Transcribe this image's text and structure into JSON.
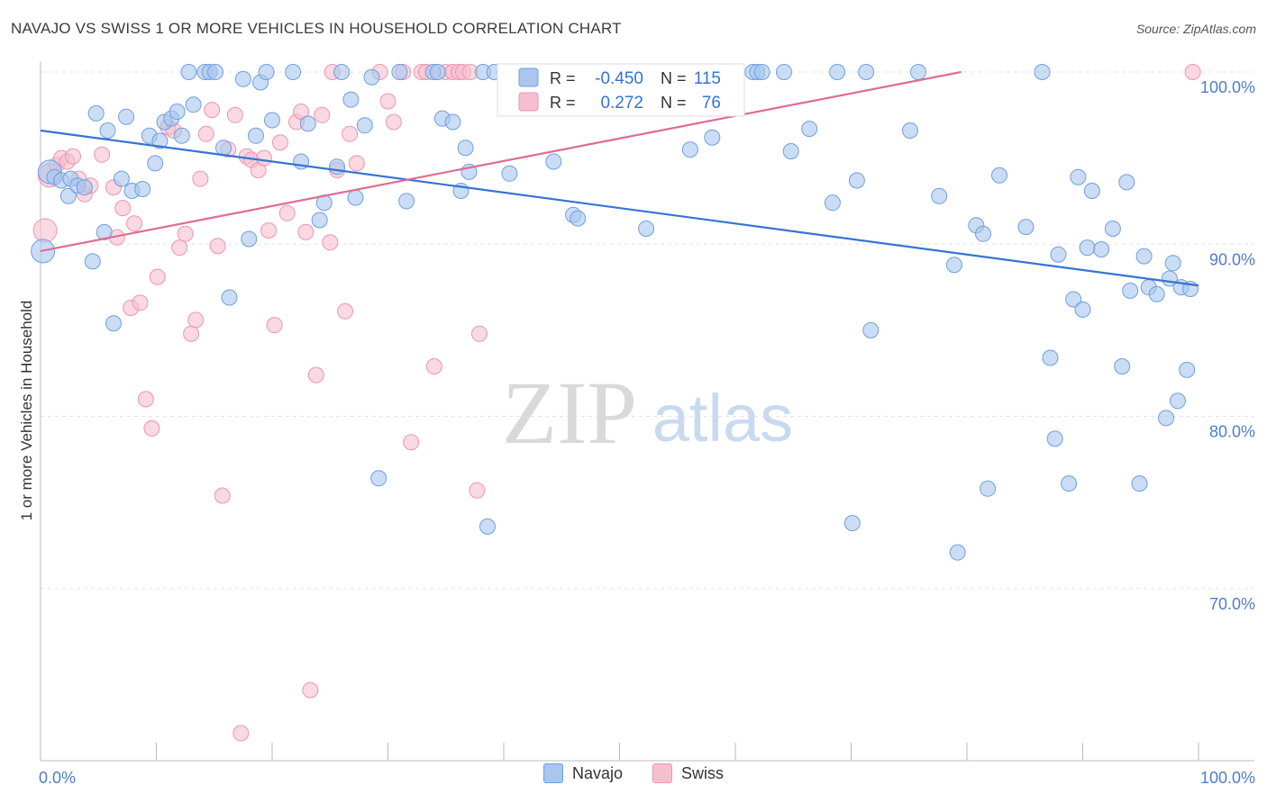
{
  "title": "NAVAJO VS SWISS 1 OR MORE VEHICLES IN HOUSEHOLD CORRELATION CHART",
  "source": "Source: ZipAtlas.com",
  "watermark": {
    "zip": "ZIP",
    "atlas": "atlas"
  },
  "colors": {
    "navajo_fill": "#a9c6ef",
    "navajo_stroke": "#6e9fe0",
    "navajo_line": "#3474d4",
    "swiss_fill": "#f6bfcf",
    "swiss_stroke": "#ec95b0",
    "swiss_line": "#e06b94",
    "tick_label": "#4f7dc9",
    "grid": "#e3e3e3"
  },
  "legend_box": {
    "rows": [
      {
        "r_label": "R =",
        "r_value": "-0.450",
        "n_label": "N =",
        "n_value": "115"
      },
      {
        "r_label": "R =",
        "r_value": "0.272",
        "n_label": "N =",
        "n_value": "76"
      }
    ]
  },
  "chart_data": {
    "type": "scatter",
    "title": "NAVAJO VS SWISS 1 OR MORE VEHICLES IN HOUSEHOLD CORRELATION CHART",
    "xlabel": "",
    "ylabel": "1 or more Vehicles in Household",
    "xlim": [
      0,
      100
    ],
    "ylim": [
      60,
      100
    ],
    "x_tick_labels": [
      "0.0%",
      "100.0%"
    ],
    "y_ticks": [
      70,
      80,
      90,
      100
    ],
    "y_tick_labels": [
      "70.0%",
      "80.0%",
      "90.0%",
      "100.0%"
    ],
    "grid": true,
    "legend_position": "bottom",
    "series": [
      {
        "name": "Navajo",
        "r": -0.45,
        "n": 115,
        "trend": [
          [
            0,
            96.6
          ],
          [
            100,
            87.6
          ]
        ],
        "points": [
          [
            0.2,
            89.6
          ],
          [
            0.8,
            94.2
          ],
          [
            1.2,
            93.9
          ],
          [
            1.8,
            93.7
          ],
          [
            2.4,
            92.8
          ],
          [
            2.6,
            93.8
          ],
          [
            3.2,
            93.4
          ],
          [
            3.8,
            93.3
          ],
          [
            4.5,
            89.0
          ],
          [
            4.8,
            97.6
          ],
          [
            5.5,
            90.7
          ],
          [
            5.8,
            96.6
          ],
          [
            6.3,
            85.4
          ],
          [
            7.0,
            93.8
          ],
          [
            7.4,
            97.4
          ],
          [
            7.9,
            93.1
          ],
          [
            8.8,
            93.2
          ],
          [
            9.4,
            96.3
          ],
          [
            9.9,
            94.7
          ],
          [
            10.3,
            96.0
          ],
          [
            10.7,
            97.1
          ],
          [
            11.3,
            97.3
          ],
          [
            11.8,
            97.7
          ],
          [
            12.2,
            96.3
          ],
          [
            12.8,
            100
          ],
          [
            13.2,
            98.1
          ],
          [
            14.2,
            100
          ],
          [
            14.6,
            100
          ],
          [
            15.1,
            100
          ],
          [
            15.8,
            95.6
          ],
          [
            16.3,
            86.9
          ],
          [
            17.5,
            99.6
          ],
          [
            18.0,
            90.3
          ],
          [
            18.6,
            96.3
          ],
          [
            19.0,
            99.4
          ],
          [
            19.5,
            100
          ],
          [
            20.0,
            97.2
          ],
          [
            21.8,
            100
          ],
          [
            22.5,
            94.8
          ],
          [
            23.1,
            97.0
          ],
          [
            24.1,
            91.4
          ],
          [
            24.5,
            92.4
          ],
          [
            25.6,
            94.5
          ],
          [
            26.0,
            100
          ],
          [
            26.8,
            98.4
          ],
          [
            27.2,
            92.7
          ],
          [
            28.0,
            96.9
          ],
          [
            28.6,
            99.7
          ],
          [
            29.2,
            76.4
          ],
          [
            31.0,
            100
          ],
          [
            31.6,
            92.5
          ],
          [
            33.9,
            100
          ],
          [
            34.3,
            100
          ],
          [
            34.7,
            97.3
          ],
          [
            35.6,
            97.1
          ],
          [
            36.3,
            93.1
          ],
          [
            36.7,
            95.6
          ],
          [
            37.0,
            94.2
          ],
          [
            38.2,
            100
          ],
          [
            38.6,
            73.6
          ],
          [
            39.2,
            100
          ],
          [
            40.1,
            100
          ],
          [
            40.5,
            94.1
          ],
          [
            41.2,
            100
          ],
          [
            42.2,
            100
          ],
          [
            44.3,
            94.8
          ],
          [
            46.0,
            91.7
          ],
          [
            46.4,
            91.5
          ],
          [
            47.5,
            100
          ],
          [
            52.3,
            90.9
          ],
          [
            56.1,
            95.5
          ],
          [
            58.0,
            96.2
          ],
          [
            61.5,
            100
          ],
          [
            61.9,
            100
          ],
          [
            62.3,
            100
          ],
          [
            64.2,
            100
          ],
          [
            64.8,
            95.4
          ],
          [
            66.4,
            96.7
          ],
          [
            68.4,
            92.4
          ],
          [
            68.8,
            100
          ],
          [
            70.1,
            73.8
          ],
          [
            70.5,
            93.7
          ],
          [
            71.3,
            100
          ],
          [
            71.7,
            85.0
          ],
          [
            75.1,
            96.6
          ],
          [
            75.8,
            100
          ],
          [
            77.6,
            92.8
          ],
          [
            78.9,
            88.8
          ],
          [
            79.2,
            72.1
          ],
          [
            80.8,
            91.1
          ],
          [
            81.4,
            90.6
          ],
          [
            81.8,
            75.8
          ],
          [
            82.8,
            94.0
          ],
          [
            85.1,
            91.0
          ],
          [
            86.5,
            100
          ],
          [
            87.2,
            83.4
          ],
          [
            87.6,
            78.7
          ],
          [
            87.9,
            89.4
          ],
          [
            88.8,
            76.1
          ],
          [
            89.2,
            86.8
          ],
          [
            89.6,
            93.9
          ],
          [
            90.0,
            86.2
          ],
          [
            90.4,
            89.8
          ],
          [
            90.8,
            93.1
          ],
          [
            91.6,
            89.7
          ],
          [
            92.6,
            90.9
          ],
          [
            93.4,
            82.9
          ],
          [
            93.8,
            93.6
          ],
          [
            94.1,
            87.3
          ],
          [
            94.9,
            76.1
          ],
          [
            95.3,
            89.3
          ],
          [
            95.7,
            87.5
          ],
          [
            96.4,
            87.1
          ],
          [
            97.2,
            79.9
          ],
          [
            97.5,
            88.0
          ],
          [
            97.8,
            88.9
          ],
          [
            98.2,
            80.9
          ],
          [
            98.5,
            87.5
          ],
          [
            99.0,
            82.7
          ],
          [
            99.3,
            87.4
          ]
        ]
      },
      {
        "name": "Swiss",
        "r": 0.272,
        "n": 76,
        "trend": [
          [
            0,
            89.6
          ],
          [
            79.5,
            100
          ]
        ],
        "points": [
          [
            0.4,
            90.8
          ],
          [
            0.8,
            94.0
          ],
          [
            1.4,
            94.6
          ],
          [
            1.8,
            95.0
          ],
          [
            2.3,
            94.8
          ],
          [
            2.8,
            95.1
          ],
          [
            3.3,
            93.8
          ],
          [
            3.8,
            92.9
          ],
          [
            4.3,
            93.4
          ],
          [
            5.3,
            95.2
          ],
          [
            6.3,
            93.3
          ],
          [
            6.6,
            90.4
          ],
          [
            7.1,
            92.1
          ],
          [
            7.8,
            86.3
          ],
          [
            8.1,
            91.2
          ],
          [
            8.6,
            86.6
          ],
          [
            9.1,
            81.0
          ],
          [
            9.6,
            79.3
          ],
          [
            10.1,
            88.1
          ],
          [
            11.0,
            96.8
          ],
          [
            11.5,
            96.6
          ],
          [
            12.0,
            89.8
          ],
          [
            12.5,
            90.6
          ],
          [
            13.0,
            84.8
          ],
          [
            13.4,
            85.6
          ],
          [
            13.8,
            93.8
          ],
          [
            14.3,
            96.4
          ],
          [
            14.8,
            97.8
          ],
          [
            15.3,
            89.9
          ],
          [
            15.7,
            75.4
          ],
          [
            16.2,
            95.5
          ],
          [
            16.8,
            97.5
          ],
          [
            17.3,
            61.6
          ],
          [
            17.8,
            95.1
          ],
          [
            18.2,
            94.9
          ],
          [
            18.8,
            94.3
          ],
          [
            19.3,
            95.0
          ],
          [
            19.7,
            90.8
          ],
          [
            20.2,
            85.3
          ],
          [
            20.7,
            95.9
          ],
          [
            21.3,
            91.8
          ],
          [
            22.1,
            97.1
          ],
          [
            22.5,
            97.7
          ],
          [
            22.9,
            90.7
          ],
          [
            23.3,
            64.1
          ],
          [
            23.8,
            82.4
          ],
          [
            24.3,
            97.5
          ],
          [
            25.0,
            90.1
          ],
          [
            25.2,
            100
          ],
          [
            25.6,
            94.3
          ],
          [
            26.3,
            86.1
          ],
          [
            26.7,
            96.4
          ],
          [
            27.3,
            94.7
          ],
          [
            29.3,
            100
          ],
          [
            30.0,
            98.3
          ],
          [
            30.5,
            97.1
          ],
          [
            31.3,
            100
          ],
          [
            32.0,
            78.5
          ],
          [
            32.9,
            100
          ],
          [
            33.3,
            100
          ],
          [
            34.0,
            82.9
          ],
          [
            35.0,
            100
          ],
          [
            35.6,
            100
          ],
          [
            36.1,
            100
          ],
          [
            36.5,
            100
          ],
          [
            37.1,
            100
          ],
          [
            37.7,
            75.7
          ],
          [
            37.9,
            84.8
          ],
          [
            40.1,
            100
          ],
          [
            41.7,
            100
          ],
          [
            42.9,
            100
          ],
          [
            43.6,
            100
          ],
          [
            46.6,
            100
          ],
          [
            48.5,
            100
          ],
          [
            50.2,
            100
          ],
          [
            99.5,
            100
          ]
        ]
      }
    ]
  }
}
